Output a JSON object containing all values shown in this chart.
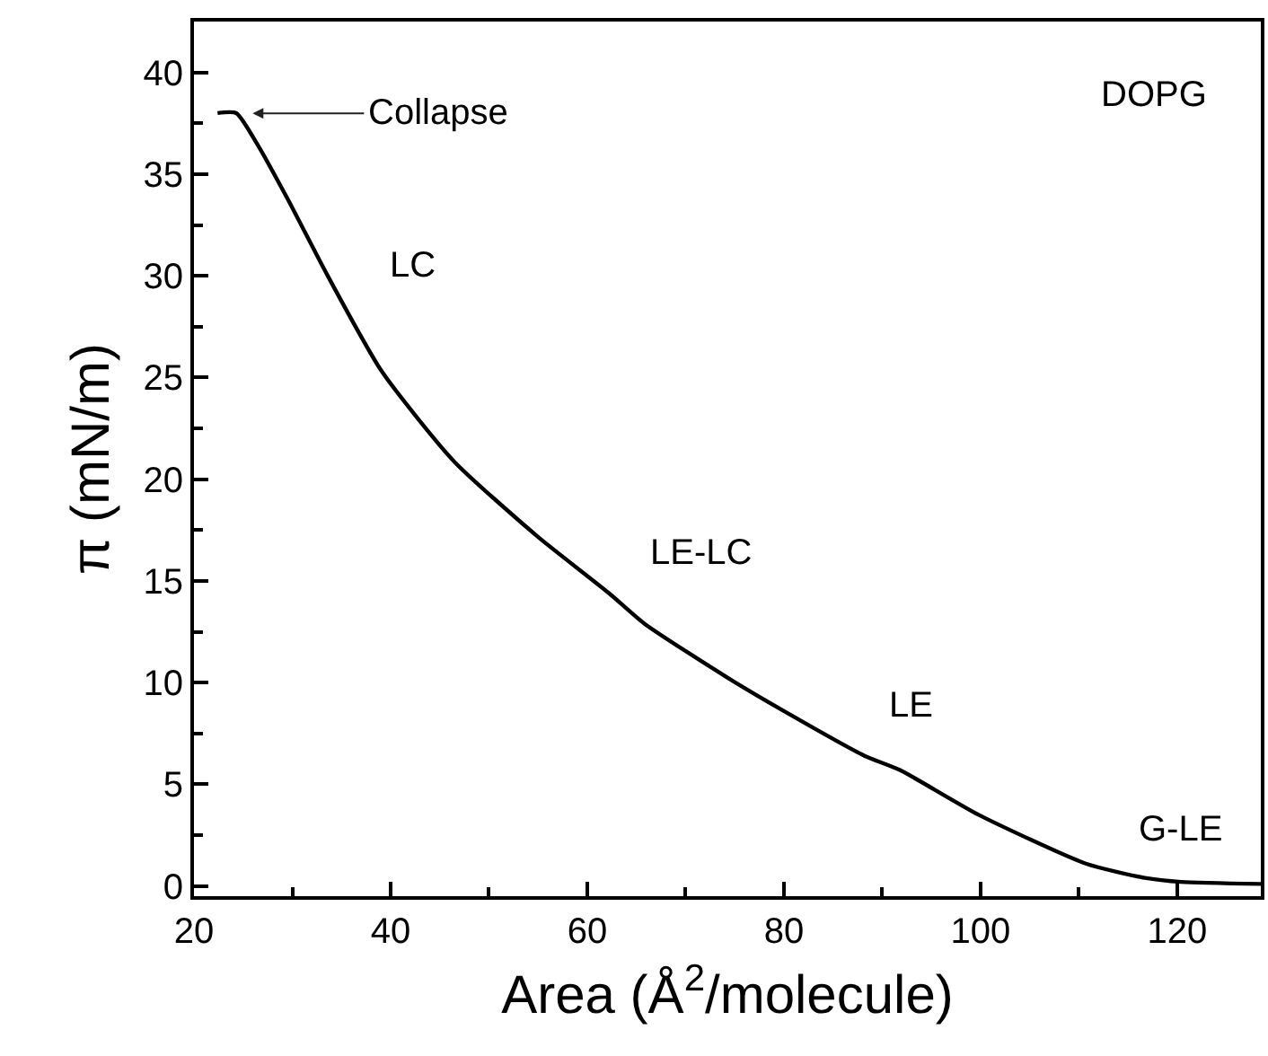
{
  "chart_data": {
    "type": "line",
    "xlabel": "Area (Å$^{2}$/molecule)",
    "ylabel": "π (mN/m)",
    "x": [
      22.4,
      24.3,
      26.4,
      29.5,
      33.6,
      39.1,
      46.4,
      54.9,
      62.2,
      65.8,
      74.4,
      80.0,
      88.2,
      91.8,
      99.8,
      110.7,
      116.7,
      120.4,
      128.5
    ],
    "series": [
      {
        "color": "#000000",
        "values": [
          38.0,
          38.0,
          36.5,
          33.8,
          30.0,
          25.3,
          20.9,
          17.2,
          14.4,
          12.9,
          10.2,
          8.6,
          6.4,
          5.7,
          3.5,
          1.1,
          0.4,
          0.2,
          0.1
        ]
      }
    ],
    "xlim": [
      20,
      128.5
    ],
    "ylim": [
      -0.5,
      42.5
    ],
    "xticks": [
      20,
      {
        "value": 30,
        "label": null
      },
      40,
      {
        "value": 50,
        "label": null
      },
      60,
      {
        "value": 70,
        "label": null
      },
      80,
      {
        "value": 90,
        "label": null
      },
      100,
      {
        "value": 110,
        "label": null
      },
      120
    ],
    "yticks": [
      0,
      {
        "value": 2.5,
        "label": null
      },
      5,
      {
        "value": 7.5,
        "label": null
      },
      10,
      {
        "value": 12.5,
        "label": null
      },
      15,
      {
        "value": 17.5,
        "label": null
      },
      20,
      {
        "value": 22.5,
        "label": null
      },
      25,
      {
        "value": 27.5,
        "label": null
      },
      30,
      {
        "value": 32.5,
        "label": null
      },
      35,
      {
        "value": 37.5,
        "label": null
      },
      40
    ],
    "annotations": [
      "Collapse",
      "DOPG",
      "LC",
      "LE-LC",
      "LE",
      "G-LE"
    ],
    "marker": "none",
    "line_style": "solid"
  }
}
